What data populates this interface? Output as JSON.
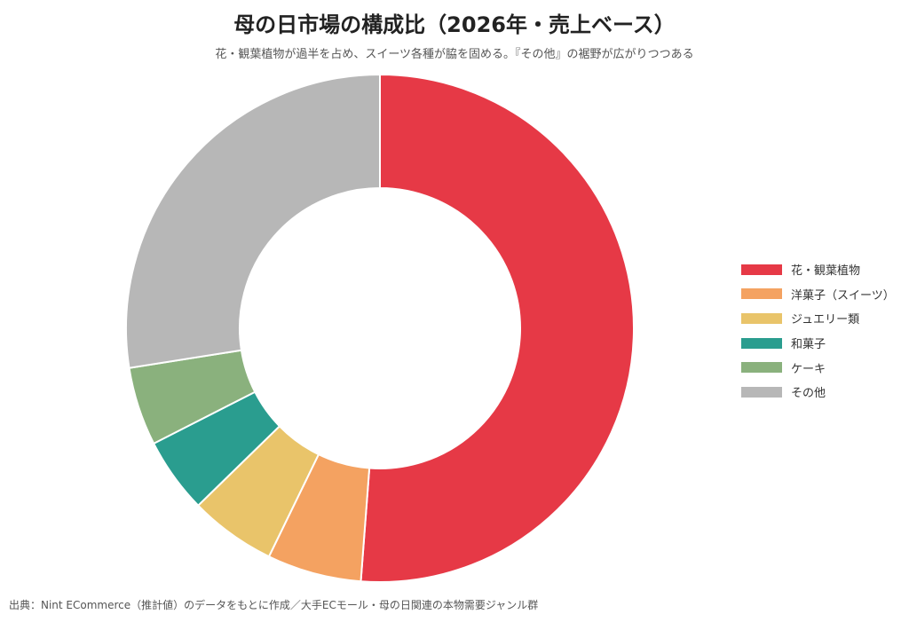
{
  "chart_data": {
    "type": "pie",
    "title": "母の日市場の構成比（2026年・売上ベース）",
    "subtitle": "花・観葉植物が過半を占め、スイーツ各種が脇を固める。『その他』の裾野が広がりつつある",
    "categories": [
      "花・観葉植物",
      "洋菓子（スイーツ）",
      "ジュエリー類",
      "和菓子",
      "ケーキ",
      "その他"
    ],
    "values": [
      51.2,
      6.0,
      5.5,
      4.8,
      5.0,
      27.5
    ],
    "colors": [
      "#e63946",
      "#f4a261",
      "#e9c46a",
      "#2a9d8f",
      "#8ab17d",
      "#b7b7b7"
    ],
    "donut": true,
    "legend_position": "right"
  },
  "source": "出典：Nint ECommerce（推計値）のデータをもとに作成／大手ECモール・母の日関連の本物需要ジャンル群"
}
